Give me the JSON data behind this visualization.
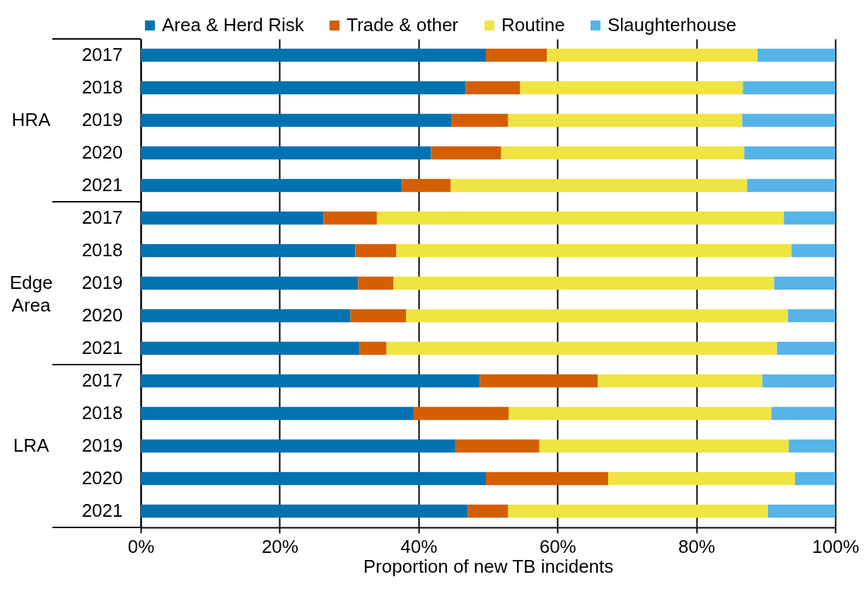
{
  "chart_data": {
    "type": "bar",
    "orientation": "horizontal",
    "stacked": true,
    "xlabel": "Proportion of new TB incidents",
    "categories": [
      "2017",
      "2018",
      "2019",
      "2020",
      "2021",
      "2017",
      "2018",
      "2019",
      "2020",
      "2021",
      "2017",
      "2018",
      "2019",
      "2020",
      "2021"
    ],
    "annotations": [
      "HRA",
      "Edge Area",
      "LRA"
    ],
    "series": [
      {
        "name": "Area & Herd Risk",
        "color": "#0072b2",
        "values": [
          49.7,
          46.8,
          44.7,
          41.8,
          37.6,
          26.3,
          30.9,
          31.3,
          30.2,
          31.5,
          48.8,
          39.3,
          45.3,
          49.7,
          47.1
        ]
      },
      {
        "name": "Trade & other",
        "color": "#d55e00",
        "values": [
          8.8,
          7.8,
          8.2,
          10.1,
          7.0,
          7.7,
          5.9,
          5.1,
          8.0,
          3.9,
          17.0,
          13.7,
          12.1,
          17.6,
          5.8
        ]
      },
      {
        "name": "Routine",
        "color": "#f0e442",
        "values": [
          30.3,
          32.1,
          33.7,
          35.0,
          42.7,
          58.6,
          56.9,
          54.8,
          55.0,
          56.2,
          23.7,
          37.8,
          35.9,
          26.9,
          37.4
        ]
      },
      {
        "name": "Slaughterhouse",
        "color": "#56b4e9",
        "values": [
          11.2,
          13.3,
          13.4,
          13.1,
          12.7,
          7.4,
          6.3,
          8.8,
          6.8,
          8.4,
          10.5,
          9.2,
          6.7,
          5.8,
          9.7
        ]
      }
    ],
    "xlim": [
      0,
      100
    ],
    "xticks": [
      {
        "value": 0,
        "label": "0%"
      },
      {
        "value": 20,
        "label": "20%"
      },
      {
        "value": 40,
        "label": "40%"
      },
      {
        "value": 60,
        "label": "60%"
      },
      {
        "value": 80,
        "label": "80%"
      },
      {
        "value": 100,
        "label": "100%"
      }
    ],
    "grid": "x",
    "legend": "top"
  }
}
